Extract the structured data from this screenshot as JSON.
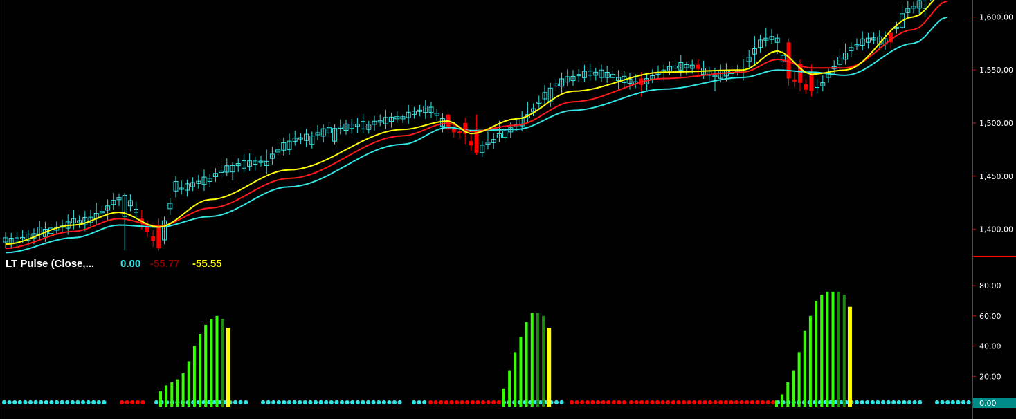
{
  "colors": {
    "background": "#000000",
    "axis_line": "#ff0000",
    "up_candle": "#33e6e6",
    "down_candle": "#ff0000",
    "ma_fast": "#ffff00",
    "ma_mid": "#ff1a1a",
    "ma_slow": "#33e6e6",
    "hist_bright_green": "#33ff00",
    "hist_dark_green": "#1e8a12",
    "hist_yellow": "#ffff00",
    "dot_cyan": "#33e6e6",
    "dot_red": "#ff0000",
    "last_value_box": "#008b8b"
  },
  "chart_data": [
    {
      "type": "candlestick",
      "panel": "price",
      "ylim": [
        1375,
        1612
      ],
      "yticks": [
        1400,
        1450,
        1500,
        1550,
        1600
      ],
      "ytick_labels": [
        "1,400.00",
        "1,450.00",
        "1,500.00",
        "1,550.00",
        "1,600.00"
      ],
      "y_axis_position": "right",
      "grid": false,
      "candles_anchor": [
        [
          0,
          1392,
          1388,
          1382,
          1397,
          "up"
        ],
        [
          6,
          1402,
          1395,
          1390,
          1408,
          "up"
        ],
        [
          12,
          1410,
          1406,
          1400,
          1418,
          "up"
        ],
        [
          16,
          1415,
          1410,
          1404,
          1425,
          "up"
        ],
        [
          18,
          1418,
          1422,
          1408,
          1428,
          "up"
        ],
        [
          21,
          1412,
          1432,
          1380,
          1434,
          "up"
        ],
        [
          24,
          1406,
          1410,
          1400,
          1418,
          "down"
        ],
        [
          27,
          1404,
          1382,
          1380,
          1410,
          "down"
        ],
        [
          28,
          1390,
          1408,
          1386,
          1412,
          "up"
        ],
        [
          30,
          1445,
          1436,
          1430,
          1450,
          "up"
        ],
        [
          36,
          1445,
          1448,
          1440,
          1452,
          "up"
        ],
        [
          40,
          1454,
          1460,
          1446,
          1463,
          "up"
        ],
        [
          46,
          1460,
          1464,
          1452,
          1475,
          "up"
        ],
        [
          50,
          1475,
          1483,
          1470,
          1490,
          "up"
        ],
        [
          54,
          1480,
          1488,
          1476,
          1492,
          "up"
        ],
        [
          58,
          1483,
          1495,
          1480,
          1499,
          "up"
        ],
        [
          64,
          1494,
          1499,
          1490,
          1502,
          "up"
        ],
        [
          70,
          1504,
          1506,
          1500,
          1508,
          "up"
        ],
        [
          75,
          1510,
          1515,
          1505,
          1520,
          "up"
        ],
        [
          78,
          1508,
          1494,
          1490,
          1512,
          "down"
        ],
        [
          81,
          1500,
          1490,
          1480,
          1505,
          "down"
        ],
        [
          83,
          1492,
          1472,
          1470,
          1508,
          "down"
        ],
        [
          85,
          1482,
          1480,
          1475,
          1492,
          "up"
        ],
        [
          87,
          1490,
          1486,
          1482,
          1502,
          "up"
        ],
        [
          92,
          1508,
          1505,
          1500,
          1520,
          "up"
        ],
        [
          96,
          1520,
          1533,
          1515,
          1538,
          "up"
        ],
        [
          100,
          1540,
          1544,
          1535,
          1550,
          "up"
        ],
        [
          104,
          1545,
          1548,
          1540,
          1552,
          "up"
        ],
        [
          108,
          1540,
          1543,
          1532,
          1550,
          "up"
        ],
        [
          112,
          1542,
          1536,
          1525,
          1548,
          "down"
        ],
        [
          116,
          1548,
          1550,
          1540,
          1555,
          "up"
        ],
        [
          120,
          1552,
          1555,
          1545,
          1558,
          "up"
        ],
        [
          122,
          1555,
          1551,
          1545,
          1560,
          "down"
        ],
        [
          125,
          1545,
          1545,
          1530,
          1552,
          "up"
        ],
        [
          130,
          1548,
          1550,
          1540,
          1560,
          "up"
        ],
        [
          132,
          1565,
          1570,
          1555,
          1582,
          "up"
        ],
        [
          134,
          1578,
          1580,
          1572,
          1590,
          "up"
        ],
        [
          136,
          1576,
          1580,
          1565,
          1584,
          "up"
        ],
        [
          138,
          1576,
          1542,
          1535,
          1580,
          "down"
        ],
        [
          140,
          1556,
          1538,
          1530,
          1560,
          "down"
        ],
        [
          142,
          1546,
          1530,
          1525,
          1555,
          "down"
        ],
        [
          144,
          1535,
          1538,
          1530,
          1545,
          "up"
        ],
        [
          148,
          1560,
          1566,
          1555,
          1575,
          "up"
        ],
        [
          152,
          1576,
          1580,
          1570,
          1585,
          "up"
        ],
        [
          156,
          1585,
          1576,
          1570,
          1590,
          "down"
        ],
        [
          158,
          1590,
          1603,
          1585,
          1612,
          "up"
        ],
        [
          162,
          1608,
          1615,
          1600,
          1625,
          "up"
        ],
        [
          166,
          1630,
          1640,
          1625,
          1645,
          "up"
        ]
      ],
      "moving_averages_anchor": {
        "ma_fast": [
          [
            0,
            1386
          ],
          [
            12,
            1404
          ],
          [
            20,
            1416
          ],
          [
            27,
            1402
          ],
          [
            36,
            1428
          ],
          [
            50,
            1456
          ],
          [
            70,
            1494
          ],
          [
            78,
            1502
          ],
          [
            82,
            1490
          ],
          [
            90,
            1504
          ],
          [
            100,
            1530
          ],
          [
            116,
            1548
          ],
          [
            130,
            1550
          ],
          [
            136,
            1568
          ],
          [
            142,
            1546
          ],
          [
            148,
            1550
          ],
          [
            160,
            1600
          ],
          [
            166,
            1625
          ]
        ],
        "ma_mid": [
          [
            0,
            1382
          ],
          [
            12,
            1398
          ],
          [
            20,
            1410
          ],
          [
            27,
            1403
          ],
          [
            36,
            1420
          ],
          [
            50,
            1448
          ],
          [
            70,
            1488
          ],
          [
            78,
            1500
          ],
          [
            82,
            1492
          ],
          [
            90,
            1498
          ],
          [
            100,
            1520
          ],
          [
            116,
            1542
          ],
          [
            130,
            1548
          ],
          [
            136,
            1560
          ],
          [
            142,
            1552
          ],
          [
            148,
            1552
          ],
          [
            160,
            1588
          ],
          [
            166,
            1615
          ]
        ],
        "ma_slow": [
          [
            0,
            1378
          ],
          [
            12,
            1392
          ],
          [
            20,
            1404
          ],
          [
            27,
            1402
          ],
          [
            36,
            1412
          ],
          [
            50,
            1440
          ],
          [
            70,
            1480
          ],
          [
            78,
            1496
          ],
          [
            82,
            1493
          ],
          [
            90,
            1494
          ],
          [
            100,
            1512
          ],
          [
            116,
            1532
          ],
          [
            130,
            1543
          ],
          [
            136,
            1550
          ],
          [
            142,
            1548
          ],
          [
            148,
            1545
          ],
          [
            160,
            1575
          ],
          [
            166,
            1600
          ]
        ]
      }
    },
    {
      "type": "bar",
      "panel": "indicator",
      "title": "LT Pulse (Close,...",
      "legend_values": [
        "0.00",
        "-55.77",
        "-55.55"
      ],
      "ylim": [
        -2,
        88
      ],
      "yticks": [
        20,
        40,
        60,
        80
      ],
      "ytick_labels": [
        "20.00",
        "40.00",
        "60.00",
        "80.00"
      ],
      "last_value_label": "0.00",
      "y_axis_position": "right",
      "histogram": [
        {
          "start_x": 232,
          "values": [
            10,
            14,
            16,
            18,
            22,
            30,
            40,
            48,
            54,
            58,
            60,
            58,
            52
          ],
          "styles": [
            "b",
            "b",
            "b",
            "b",
            "b",
            "b",
            "b",
            "b",
            "b",
            "b",
            "b",
            "d",
            "y"
          ]
        },
        {
          "start_x": 728,
          "values": [
            12,
            24,
            36,
            46,
            56,
            62,
            62,
            60,
            52
          ],
          "styles": [
            "b",
            "b",
            "b",
            "b",
            "b",
            "b",
            "d",
            "d",
            "y"
          ]
        },
        {
          "start_x": 1122,
          "values": [
            4,
            8,
            16,
            24,
            36,
            50,
            60,
            70,
            74,
            76,
            76,
            76,
            74,
            66
          ],
          "styles": [
            "b",
            "b",
            "b",
            "b",
            "b",
            "b",
            "b",
            "b",
            "b",
            "b",
            "b",
            "d",
            "d",
            "y"
          ]
        }
      ],
      "dot_segments": [
        [
          "c",
          6,
          154
        ],
        [
          "r",
          176,
          210
        ],
        [
          "c",
          226,
          358
        ],
        [
          "c",
          380,
          580
        ],
        [
          "c",
          598,
          614
        ],
        [
          "r",
          622,
          726
        ],
        [
          "c",
          728,
          818
        ],
        [
          "r",
          826,
          904
        ],
        [
          "r",
          912,
          1120
        ],
        [
          "c",
          1124,
          1336
        ],
        [
          "c",
          1354,
          1402
        ]
      ]
    }
  ]
}
